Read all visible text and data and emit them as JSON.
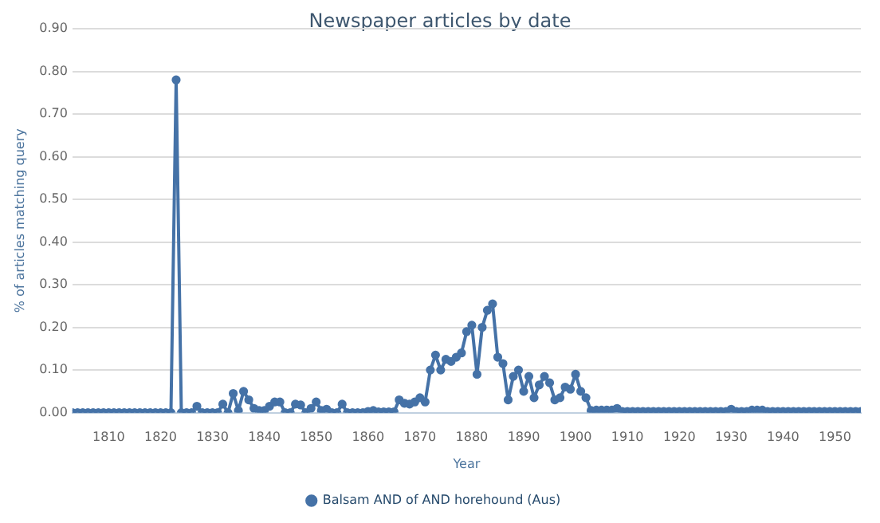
{
  "chart_data": {
    "type": "line",
    "title": "Newspaper articles by date",
    "xlabel": "Year",
    "ylabel": "% of articles matching query",
    "x": [
      1803,
      1804,
      1805,
      1806,
      1807,
      1808,
      1809,
      1810,
      1811,
      1812,
      1813,
      1814,
      1815,
      1816,
      1817,
      1818,
      1819,
      1820,
      1821,
      1822,
      1823,
      1824,
      1825,
      1826,
      1827,
      1828,
      1829,
      1830,
      1831,
      1832,
      1833,
      1834,
      1835,
      1836,
      1837,
      1838,
      1839,
      1840,
      1841,
      1842,
      1843,
      1844,
      1845,
      1846,
      1847,
      1848,
      1849,
      1850,
      1851,
      1852,
      1853,
      1854,
      1855,
      1856,
      1857,
      1858,
      1859,
      1860,
      1861,
      1862,
      1863,
      1864,
      1865,
      1866,
      1867,
      1868,
      1869,
      1870,
      1871,
      1872,
      1873,
      1874,
      1875,
      1876,
      1877,
      1878,
      1879,
      1880,
      1881,
      1882,
      1883,
      1884,
      1885,
      1886,
      1887,
      1888,
      1889,
      1890,
      1891,
      1892,
      1893,
      1894,
      1895,
      1896,
      1897,
      1898,
      1899,
      1900,
      1901,
      1902,
      1903,
      1904,
      1905,
      1906,
      1907,
      1908,
      1909,
      1910,
      1911,
      1912,
      1913,
      1914,
      1915,
      1916,
      1917,
      1918,
      1919,
      1920,
      1921,
      1922,
      1923,
      1924,
      1925,
      1926,
      1927,
      1928,
      1929,
      1930,
      1931,
      1932,
      1933,
      1934,
      1935,
      1936,
      1937,
      1938,
      1939,
      1940,
      1941,
      1942,
      1943,
      1944,
      1945,
      1946,
      1947,
      1948,
      1949,
      1950,
      1951,
      1952,
      1953,
      1954,
      1955
    ],
    "series": [
      {
        "name": "Balsam AND of AND horehound (Aus)",
        "color": "#4572a7",
        "values": [
          0,
          0,
          0,
          0,
          0,
          0,
          0,
          0,
          0,
          0,
          0,
          0,
          0,
          0,
          0,
          0,
          0,
          0,
          0,
          0,
          0.78,
          0,
          0,
          0,
          0.015,
          0,
          0,
          0,
          0,
          0.02,
          0,
          0.045,
          0.005,
          0.05,
          0.03,
          0.01,
          0.005,
          0.005,
          0.015,
          0.025,
          0.025,
          0,
          0,
          0.02,
          0.018,
          0,
          0.01,
          0.025,
          0.005,
          0.008,
          0,
          0,
          0.02,
          0,
          0,
          0,
          0,
          0.003,
          0.005,
          0.002,
          0.002,
          0.002,
          0.002,
          0.03,
          0.022,
          0.02,
          0.025,
          0.035,
          0.025,
          0.1,
          0.135,
          0.1,
          0.125,
          0.12,
          0.13,
          0.14,
          0.19,
          0.205,
          0.09,
          0.2,
          0.24,
          0.255,
          0.13,
          0.115,
          0.03,
          0.085,
          0.1,
          0.05,
          0.085,
          0.035,
          0.065,
          0.085,
          0.07,
          0.03,
          0.035,
          0.06,
          0.055,
          0.09,
          0.05,
          0.035,
          0.005,
          0.006,
          0.006,
          0.006,
          0.006,
          0.01,
          0.003,
          0.003,
          0.003,
          0.003,
          0.003,
          0.003,
          0.003,
          0.003,
          0.003,
          0.003,
          0.003,
          0.003,
          0.003,
          0.003,
          0.003,
          0.003,
          0.003,
          0.003,
          0.003,
          0.003,
          0.003,
          0.008,
          0.003,
          0.003,
          0.003,
          0.006,
          0.006,
          0.006,
          0.003,
          0.003,
          0.003,
          0.003,
          0.003,
          0.003,
          0.003,
          0.003,
          0.003,
          0.003,
          0.003,
          0.003,
          0.003,
          0.003,
          0.003,
          0.003,
          0.003,
          0.003,
          0.003
        ]
      }
    ],
    "xlim": [
      1803,
      1955
    ],
    "xticks": [
      1810,
      1820,
      1830,
      1840,
      1850,
      1860,
      1870,
      1880,
      1890,
      1900,
      1910,
      1920,
      1930,
      1940,
      1950
    ],
    "ylim": [
      0,
      0.9
    ],
    "yticks": [
      {
        "value": 0,
        "label": "0.00"
      },
      {
        "value": 0.1,
        "label": "0.10"
      },
      {
        "value": 0.2,
        "label": "0.20"
      },
      {
        "value": 0.3,
        "label": "0.30"
      },
      {
        "value": 0.4,
        "label": "0.40"
      },
      {
        "value": 0.5,
        "label": "0.50"
      },
      {
        "value": 0.6,
        "label": "0.60"
      },
      {
        "value": 0.7,
        "label": "0.70"
      },
      {
        "value": 0.8,
        "label": "0.80"
      },
      {
        "value": 0.9,
        "label": "0.90"
      }
    ],
    "grid": "y",
    "legend": "bottom",
    "marker": "circle",
    "line_style": "solid"
  }
}
